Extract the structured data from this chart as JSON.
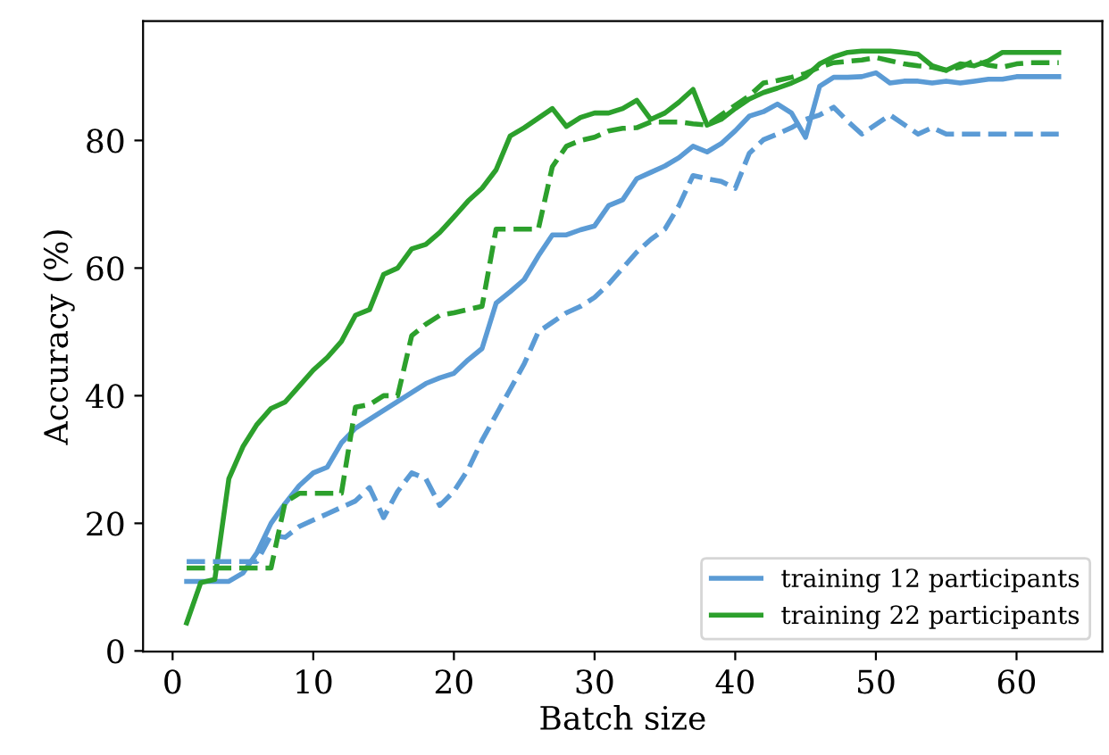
{
  "chart_data": {
    "type": "line",
    "xlabel": "Batch size",
    "ylabel": "Accuracy (%)",
    "x": [
      1,
      2,
      3,
      4,
      5,
      6,
      7,
      8,
      9,
      10,
      11,
      12,
      13,
      14,
      15,
      16,
      17,
      18,
      19,
      20,
      21,
      22,
      23,
      24,
      25,
      26,
      27,
      28,
      29,
      30,
      31,
      32,
      33,
      34,
      35,
      36,
      37,
      38,
      39,
      40,
      41,
      42,
      43,
      44,
      45,
      46,
      47,
      48,
      49,
      50,
      51,
      52,
      53,
      54,
      55,
      56,
      57,
      58,
      59,
      60,
      61,
      62,
      63
    ],
    "series": [
      {
        "name": "training 12 participants",
        "color": "#5b9bd5",
        "line_style": "solid",
        "values": [
          10.9,
          10.9,
          10.9,
          10.9,
          12.2,
          15.4,
          20,
          23.1,
          25.9,
          27.9,
          28.8,
          32.6,
          34.9,
          36.3,
          37.7,
          39.1,
          40.5,
          41.9,
          42.8,
          43.5,
          45.6,
          47.4,
          54.5,
          56.3,
          58.2,
          61.9,
          65.2,
          65.2,
          66,
          66.6,
          69.8,
          70.7,
          74,
          75,
          76,
          77.3,
          79.1,
          78.2,
          79.5,
          81.5,
          83.8,
          84.5,
          85.7,
          84.3,
          80.5,
          88.5,
          89.9,
          89.9,
          90,
          90.6,
          89,
          89.3,
          89.3,
          89,
          89.3,
          89,
          89.3,
          89.6,
          89.6,
          90,
          90,
          90,
          90
        ]
      },
      {
        "name": "training 22 participants",
        "color": "#2ca02c",
        "line_style": "solid",
        "values": [
          4.4,
          10.7,
          11.2,
          27,
          32,
          35.5,
          38,
          39,
          41.5,
          44,
          46,
          48.5,
          52.6,
          53.5,
          59,
          60,
          63,
          63.7,
          65.6,
          68,
          70.5,
          72.5,
          75.4,
          80.7,
          82,
          83.5,
          85,
          82.2,
          83.6,
          84.3,
          84.3,
          85,
          86.3,
          83.3,
          84.3,
          86,
          88,
          82.4,
          83.3,
          85,
          86.5,
          87.5,
          88.2,
          89,
          90,
          92,
          93.1,
          93.8,
          94,
          94,
          94,
          93.8,
          93.5,
          91.7,
          91,
          92,
          91.7,
          92.5,
          93.8,
          93.8,
          93.8,
          93.8,
          93.8
        ]
      },
      {
        "color": "#5b9bd5",
        "line_style": "dashed",
        "values": [
          14,
          14,
          14,
          14,
          14,
          14,
          18.2,
          17.8,
          19.5,
          20.5,
          21.5,
          22.5,
          23.5,
          25.6,
          20.9,
          25,
          27.9,
          27,
          22.8,
          25,
          28.4,
          33,
          37,
          41,
          45,
          50,
          51.5,
          53,
          54,
          55.4,
          57.5,
          60,
          62.5,
          64.5,
          66.1,
          69.8,
          74.5,
          74,
          73.6,
          72.5,
          78,
          80.1,
          81,
          82,
          83.3,
          84,
          85.2,
          83,
          81,
          82.5,
          84,
          82.5,
          81,
          82,
          81,
          81,
          81,
          81,
          81,
          81,
          81,
          81,
          81
        ]
      },
      {
        "color": "#2ca02c",
        "line_style": "dashed",
        "values": [
          13,
          13,
          13,
          13,
          13,
          13,
          13,
          23.3,
          24.7,
          24.7,
          24.7,
          24.7,
          38.2,
          38.6,
          40,
          40,
          49.4,
          51.2,
          52.6,
          53,
          53.5,
          54,
          66.1,
          66.1,
          66.1,
          66.1,
          75.9,
          79.1,
          80,
          80.5,
          81.5,
          81.9,
          82,
          82.9,
          82.9,
          82.9,
          82.6,
          82.4,
          84,
          85.5,
          87,
          89,
          89.4,
          89.9,
          90.5,
          91.5,
          92.2,
          92.4,
          92.6,
          93,
          92.5,
          92,
          91.7,
          91.5,
          91,
          91.5,
          92.5,
          91.8,
          91.5,
          92,
          92.2,
          92.2,
          92.2
        ]
      }
    ],
    "xlim": [
      -2.1,
      66.1
    ],
    "ylim": [
      -0.1,
      98.7
    ],
    "xticks": [
      0,
      10,
      20,
      30,
      40,
      50,
      60
    ],
    "yticks": [
      0,
      20,
      40,
      60,
      80
    ],
    "grid": false,
    "legend": "bottom right"
  }
}
